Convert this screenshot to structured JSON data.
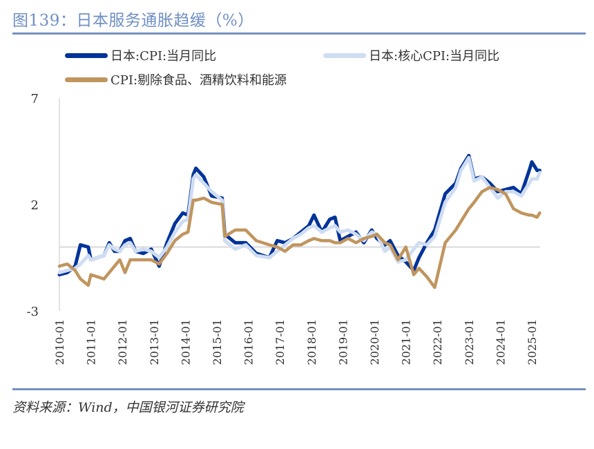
{
  "title": "图139：日本服务通胀趋缓（%）",
  "source": "资料来源：Wind，中国银河证券研究院",
  "colors": {
    "headline": "#003399",
    "core": "#cfddf3",
    "services": "#c0955e",
    "title": "#6f8fc4"
  },
  "chart_data": {
    "type": "line",
    "ylim": [
      -3,
      7
    ],
    "yticks": [
      "7",
      "2",
      "-3"
    ],
    "xticks": [
      "2010-01",
      "2011-01",
      "2012-01",
      "2013-01",
      "2014-01",
      "2015-01",
      "2016-01",
      "2017-01",
      "2018-01",
      "2019-01",
      "2020-01",
      "2021-01",
      "2022-01",
      "2023-01",
      "2024-01",
      "2025-01"
    ],
    "grid": false,
    "legend": "top",
    "x": [
      "2010-01",
      "2010-04",
      "2010-07",
      "2010-09",
      "2010-12",
      "2011-01",
      "2011-06",
      "2011-08",
      "2011-10",
      "2011-12",
      "2012-02",
      "2012-04",
      "2012-06",
      "2012-09",
      "2012-12",
      "2013-03",
      "2013-06",
      "2013-09",
      "2013-12",
      "2014-02",
      "2014-04",
      "2014-05",
      "2014-08",
      "2014-11",
      "2015-03",
      "2015-04",
      "2015-08",
      "2015-12",
      "2016-04",
      "2016-09",
      "2016-12",
      "2017-03",
      "2017-06",
      "2017-09",
      "2017-12",
      "2018-02",
      "2018-05",
      "2018-08",
      "2018-10",
      "2018-12",
      "2019-03",
      "2019-06",
      "2019-09",
      "2019-12",
      "2020-02",
      "2020-05",
      "2020-07",
      "2020-10",
      "2021-01",
      "2021-04",
      "2021-06",
      "2021-09",
      "2021-12",
      "2022-04",
      "2022-08",
      "2022-10",
      "2023-01",
      "2023-03",
      "2023-06",
      "2023-09",
      "2023-12",
      "2024-03",
      "2024-06",
      "2024-09",
      "2024-12",
      "2025-01",
      "2025-03",
      "2025-04"
    ],
    "series": [
      {
        "name": "日本:CPI:当月同比",
        "values": [
          -1.3,
          -1.2,
          -0.9,
          0.1,
          0.0,
          -0.6,
          -0.4,
          0.2,
          -0.2,
          -0.2,
          0.3,
          0.4,
          -0.2,
          -0.3,
          -0.1,
          -0.9,
          0.2,
          1.1,
          1.6,
          1.5,
          3.4,
          3.7,
          3.3,
          2.4,
          2.3,
          0.6,
          0.2,
          0.2,
          -0.3,
          -0.5,
          0.3,
          0.2,
          0.4,
          0.7,
          1.0,
          1.5,
          0.7,
          1.3,
          1.4,
          0.3,
          0.5,
          0.7,
          0.2,
          0.8,
          0.4,
          0.1,
          0.3,
          -0.4,
          -0.7,
          -1.1,
          -0.5,
          0.2,
          0.8,
          2.5,
          3.0,
          3.7,
          4.3,
          3.2,
          3.3,
          3.0,
          2.6,
          2.7,
          2.8,
          2.5,
          3.6,
          4.0,
          3.6,
          3.6
        ]
      },
      {
        "name": "日本:核心CPI:当月同比",
        "values": [
          -1.2,
          -1.1,
          -1.0,
          -0.8,
          -0.4,
          -0.6,
          -0.4,
          0.1,
          -0.1,
          -0.2,
          0.1,
          0.2,
          -0.2,
          -0.1,
          -0.2,
          -0.5,
          0.0,
          0.7,
          1.2,
          1.3,
          3.2,
          3.4,
          3.0,
          2.6,
          2.2,
          0.3,
          -0.1,
          0.1,
          -0.4,
          -0.5,
          -0.2,
          0.1,
          0.4,
          0.6,
          0.9,
          1.0,
          0.7,
          0.9,
          1.0,
          0.7,
          0.8,
          0.6,
          0.3,
          0.7,
          0.6,
          -0.2,
          0.0,
          -0.7,
          -0.6,
          -0.1,
          0.2,
          0.1,
          0.5,
          2.1,
          2.8,
          3.6,
          4.2,
          3.1,
          3.3,
          2.8,
          2.3,
          2.6,
          2.6,
          2.4,
          3.0,
          3.2,
          3.2,
          3.5
        ]
      },
      {
        "name": "CPI:剔除食品、酒精饮料和能源",
        "values": [
          -0.9,
          -0.8,
          -1.1,
          -1.5,
          -1.8,
          -1.3,
          -1.5,
          -1.2,
          -0.9,
          -0.6,
          -1.2,
          -0.6,
          -0.6,
          -0.6,
          -0.6,
          -0.8,
          -0.3,
          0.3,
          0.6,
          0.7,
          2.2,
          2.2,
          2.3,
          2.1,
          2.0,
          0.5,
          0.8,
          0.8,
          0.3,
          0.1,
          0.0,
          -0.2,
          0.1,
          0.1,
          0.3,
          0.4,
          0.3,
          0.3,
          0.2,
          0.2,
          0.4,
          0.2,
          0.4,
          0.5,
          0.6,
          0.2,
          0.1,
          -0.6,
          0.0,
          -1.3,
          -1.0,
          -1.4,
          -1.9,
          0.2,
          0.8,
          1.2,
          1.8,
          2.1,
          2.6,
          2.8,
          2.7,
          2.5,
          1.8,
          1.6,
          1.5,
          1.5,
          1.4,
          1.6
        ]
      }
    ]
  }
}
